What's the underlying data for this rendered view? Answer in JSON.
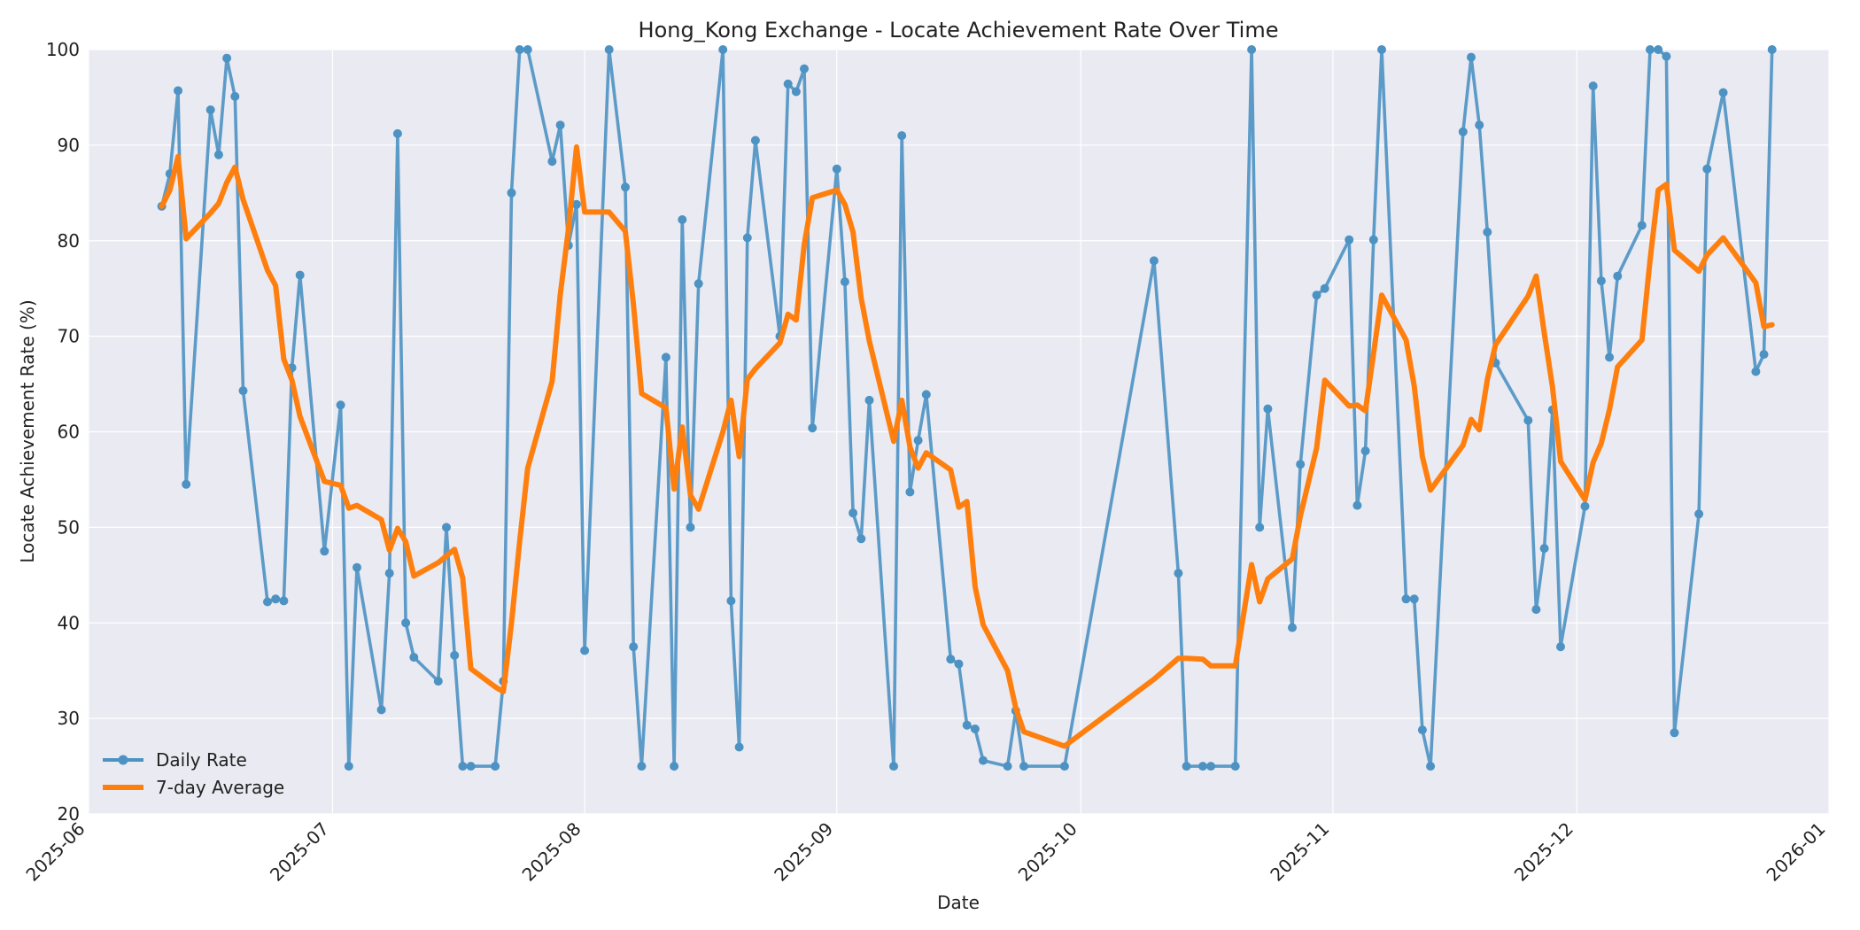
{
  "chart_data": {
    "type": "line",
    "title": "Hong_Kong Exchange - Locate Achievement Rate Over Time",
    "xlabel": "Date",
    "ylabel": "Locate Achievement Rate (%)",
    "xlim": [
      "2025-06-01",
      "2026-01-01"
    ],
    "ylim": [
      20,
      100
    ],
    "x_ticks": [
      "2025-06-01",
      "2025-07-01",
      "2025-08-01",
      "2025-09-01",
      "2025-10-01",
      "2025-11-01",
      "2025-12-01",
      "2026-01-01"
    ],
    "x_tick_labels": [
      "2025-06",
      "2025-07",
      "2025-08",
      "2025-09",
      "2025-10",
      "2025-11",
      "2025-12",
      "2026-01"
    ],
    "y_ticks": [
      20,
      30,
      40,
      50,
      60,
      70,
      80,
      90,
      100
    ],
    "grid": true,
    "legend_position": "bottom-left",
    "colors": {
      "plot_bg": "#EAEAF2",
      "daily": "#4C92C3",
      "average": "#FF7F0E"
    },
    "series": [
      {
        "name": "Daily Rate",
        "marker": "circle",
        "points": [
          [
            "2025-06-10",
            83.6
          ],
          [
            "2025-06-11",
            87.0
          ],
          [
            "2025-06-12",
            95.7
          ],
          [
            "2025-06-13",
            54.5
          ],
          [
            "2025-06-16",
            93.7
          ],
          [
            "2025-06-17",
            89.0
          ],
          [
            "2025-06-18",
            99.1
          ],
          [
            "2025-06-19",
            95.1
          ],
          [
            "2025-06-20",
            64.3
          ],
          [
            "2025-06-23",
            42.2
          ],
          [
            "2025-06-24",
            42.5
          ],
          [
            "2025-06-25",
            42.3
          ],
          [
            "2025-06-26",
            66.7
          ],
          [
            "2025-06-27",
            76.4
          ],
          [
            "2025-06-30",
            47.5
          ],
          [
            "2025-07-02",
            62.8
          ],
          [
            "2025-07-03",
            25.0
          ],
          [
            "2025-07-04",
            45.8
          ],
          [
            "2025-07-07",
            30.9
          ],
          [
            "2025-07-08",
            45.2
          ],
          [
            "2025-07-09",
            91.2
          ],
          [
            "2025-07-10",
            40.0
          ],
          [
            "2025-07-11",
            36.4
          ],
          [
            "2025-07-14",
            33.9
          ],
          [
            "2025-07-15",
            50.0
          ],
          [
            "2025-07-16",
            36.6
          ],
          [
            "2025-07-17",
            25.0
          ],
          [
            "2025-07-18",
            25.0
          ],
          [
            "2025-07-21",
            25.0
          ],
          [
            "2025-07-22",
            33.9
          ],
          [
            "2025-07-23",
            85.0
          ],
          [
            "2025-07-24",
            100.0
          ],
          [
            "2025-07-25",
            100.0
          ],
          [
            "2025-07-28",
            88.3
          ],
          [
            "2025-07-29",
            92.1
          ],
          [
            "2025-07-30",
            79.5
          ],
          [
            "2025-07-31",
            83.8
          ],
          [
            "2025-08-01",
            37.1
          ],
          [
            "2025-08-04",
            100.0
          ],
          [
            "2025-08-06",
            85.6
          ],
          [
            "2025-08-07",
            37.5
          ],
          [
            "2025-08-08",
            25.0
          ],
          [
            "2025-08-11",
            67.8
          ],
          [
            "2025-08-12",
            25.0
          ],
          [
            "2025-08-13",
            82.2
          ],
          [
            "2025-08-14",
            50.0
          ],
          [
            "2025-08-15",
            75.5
          ],
          [
            "2025-08-18",
            100.0
          ],
          [
            "2025-08-19",
            42.3
          ],
          [
            "2025-08-20",
            27.0
          ],
          [
            "2025-08-21",
            80.3
          ],
          [
            "2025-08-22",
            90.5
          ],
          [
            "2025-08-25",
            70.0
          ],
          [
            "2025-08-26",
            96.4
          ],
          [
            "2025-08-27",
            95.6
          ],
          [
            "2025-08-28",
            98.0
          ],
          [
            "2025-08-29",
            60.4
          ],
          [
            "2025-09-01",
            87.5
          ],
          [
            "2025-09-02",
            75.7
          ],
          [
            "2025-09-03",
            51.5
          ],
          [
            "2025-09-04",
            48.8
          ],
          [
            "2025-09-05",
            63.3
          ],
          [
            "2025-09-08",
            25.0
          ],
          [
            "2025-09-09",
            91.0
          ],
          [
            "2025-09-10",
            53.7
          ],
          [
            "2025-09-11",
            59.1
          ],
          [
            "2025-09-12",
            63.9
          ],
          [
            "2025-09-15",
            36.2
          ],
          [
            "2025-09-16",
            35.7
          ],
          [
            "2025-09-17",
            29.3
          ],
          [
            "2025-09-18",
            28.9
          ],
          [
            "2025-09-19",
            25.6
          ],
          [
            "2025-09-22",
            25.0
          ],
          [
            "2025-09-23",
            30.8
          ],
          [
            "2025-09-24",
            25.0
          ],
          [
            "2025-09-29",
            25.0
          ],
          [
            "2025-10-10",
            77.9
          ],
          [
            "2025-10-13",
            45.2
          ],
          [
            "2025-10-14",
            25.0
          ],
          [
            "2025-10-16",
            25.0
          ],
          [
            "2025-10-17",
            25.0
          ],
          [
            "2025-10-20",
            25.0
          ],
          [
            "2025-10-22",
            100.0
          ],
          [
            "2025-10-23",
            50.0
          ],
          [
            "2025-10-24",
            62.4
          ],
          [
            "2025-10-27",
            39.5
          ],
          [
            "2025-10-28",
            56.6
          ],
          [
            "2025-10-30",
            74.3
          ],
          [
            "2025-10-31",
            75.0
          ],
          [
            "2025-11-03",
            80.1
          ],
          [
            "2025-11-04",
            52.3
          ],
          [
            "2025-11-05",
            58.0
          ],
          [
            "2025-11-06",
            80.1
          ],
          [
            "2025-11-07",
            100.0
          ],
          [
            "2025-11-10",
            42.5
          ],
          [
            "2025-11-11",
            42.5
          ],
          [
            "2025-11-12",
            28.8
          ],
          [
            "2025-11-13",
            25.0
          ],
          [
            "2025-11-17",
            91.4
          ],
          [
            "2025-11-18",
            99.2
          ],
          [
            "2025-11-19",
            92.1
          ],
          [
            "2025-11-20",
            80.9
          ],
          [
            "2025-11-21",
            67.2
          ],
          [
            "2025-11-25",
            61.2
          ],
          [
            "2025-11-26",
            41.4
          ],
          [
            "2025-11-27",
            47.8
          ],
          [
            "2025-11-28",
            62.3
          ],
          [
            "2025-11-29",
            37.5
          ],
          [
            "2025-12-02",
            52.2
          ],
          [
            "2025-12-03",
            96.2
          ],
          [
            "2025-12-04",
            75.8
          ],
          [
            "2025-12-05",
            67.8
          ],
          [
            "2025-12-06",
            76.3
          ],
          [
            "2025-12-09",
            81.6
          ],
          [
            "2025-12-10",
            100.0
          ],
          [
            "2025-12-11",
            100.0
          ],
          [
            "2025-12-12",
            99.3
          ],
          [
            "2025-12-13",
            28.5
          ],
          [
            "2025-12-16",
            51.4
          ],
          [
            "2025-12-17",
            87.5
          ],
          [
            "2025-12-19",
            95.5
          ],
          [
            "2025-12-23",
            66.3
          ],
          [
            "2025-12-24",
            68.1
          ],
          [
            "2025-12-25",
            100.0
          ]
        ]
      },
      {
        "name": "7-day Average",
        "marker": "none",
        "points": [
          [
            "2025-06-10",
            83.6
          ],
          [
            "2025-06-11",
            85.3
          ],
          [
            "2025-06-12",
            88.8
          ],
          [
            "2025-06-13",
            80.2
          ],
          [
            "2025-06-16",
            82.9
          ],
          [
            "2025-06-17",
            83.9
          ],
          [
            "2025-06-18",
            86.1
          ],
          [
            "2025-06-19",
            87.7
          ],
          [
            "2025-06-20",
            84.3
          ],
          [
            "2025-06-23",
            76.9
          ],
          [
            "2025-06-24",
            75.3
          ],
          [
            "2025-06-25",
            67.6
          ],
          [
            "2025-06-26",
            65.4
          ],
          [
            "2025-06-27",
            61.6
          ],
          [
            "2025-06-30",
            54.8
          ],
          [
            "2025-07-02",
            54.4
          ],
          [
            "2025-07-03",
            52.0
          ],
          [
            "2025-07-04",
            52.3
          ],
          [
            "2025-07-07",
            50.8
          ],
          [
            "2025-07-08",
            47.6
          ],
          [
            "2025-07-09",
            49.9
          ],
          [
            "2025-07-10",
            48.5
          ],
          [
            "2025-07-11",
            44.9
          ],
          [
            "2025-07-14",
            46.3
          ],
          [
            "2025-07-15",
            47.0
          ],
          [
            "2025-07-16",
            47.7
          ],
          [
            "2025-07-17",
            44.7
          ],
          [
            "2025-07-18",
            35.2
          ],
          [
            "2025-07-21",
            33.3
          ],
          [
            "2025-07-22",
            32.8
          ],
          [
            "2025-07-23",
            40.0
          ],
          [
            "2025-07-24",
            48.5
          ],
          [
            "2025-07-25",
            56.2
          ],
          [
            "2025-07-28",
            65.3
          ],
          [
            "2025-07-29",
            74.4
          ],
          [
            "2025-07-30",
            81.2
          ],
          [
            "2025-07-31",
            89.8
          ],
          [
            "2025-08-01",
            83.0
          ],
          [
            "2025-08-04",
            83.0
          ],
          [
            "2025-08-06",
            81.0
          ],
          [
            "2025-08-07",
            73.3
          ],
          [
            "2025-08-08",
            64.0
          ],
          [
            "2025-08-11",
            62.5
          ],
          [
            "2025-08-12",
            54.0
          ],
          [
            "2025-08-13",
            60.5
          ],
          [
            "2025-08-14",
            53.4
          ],
          [
            "2025-08-15",
            51.9
          ],
          [
            "2025-08-18",
            60.0
          ],
          [
            "2025-08-19",
            63.3
          ],
          [
            "2025-08-20",
            57.4
          ],
          [
            "2025-08-21",
            65.5
          ],
          [
            "2025-08-22",
            66.6
          ],
          [
            "2025-08-25",
            69.3
          ],
          [
            "2025-08-26",
            72.3
          ],
          [
            "2025-08-27",
            71.7
          ],
          [
            "2025-08-28",
            79.6
          ],
          [
            "2025-08-29",
            84.5
          ],
          [
            "2025-09-01",
            85.3
          ],
          [
            "2025-09-02",
            83.8
          ],
          [
            "2025-09-03",
            80.9
          ],
          [
            "2025-09-04",
            74.0
          ],
          [
            "2025-09-05",
            69.5
          ],
          [
            "2025-09-08",
            59.0
          ],
          [
            "2025-09-09",
            63.3
          ],
          [
            "2025-09-10",
            58.4
          ],
          [
            "2025-09-11",
            56.2
          ],
          [
            "2025-09-12",
            57.8
          ],
          [
            "2025-09-15",
            56.0
          ],
          [
            "2025-09-16",
            52.1
          ],
          [
            "2025-09-17",
            52.7
          ],
          [
            "2025-09-18",
            43.8
          ],
          [
            "2025-09-19",
            39.8
          ],
          [
            "2025-09-22",
            35.0
          ],
          [
            "2025-09-23",
            31.1
          ],
          [
            "2025-09-24",
            28.6
          ],
          [
            "2025-09-29",
            27.1
          ],
          [
            "2025-10-10",
            34.1
          ],
          [
            "2025-10-13",
            36.3
          ],
          [
            "2025-10-14",
            36.3
          ],
          [
            "2025-10-16",
            36.2
          ],
          [
            "2025-10-17",
            35.5
          ],
          [
            "2025-10-20",
            35.5
          ],
          [
            "2025-10-22",
            46.1
          ],
          [
            "2025-10-23",
            42.2
          ],
          [
            "2025-10-24",
            44.6
          ],
          [
            "2025-10-27",
            46.7
          ],
          [
            "2025-10-28",
            51.2
          ],
          [
            "2025-10-30",
            58.3
          ],
          [
            "2025-10-31",
            65.4
          ],
          [
            "2025-11-03",
            62.7
          ],
          [
            "2025-11-04",
            62.8
          ],
          [
            "2025-11-05",
            62.2
          ],
          [
            "2025-11-06",
            68.2
          ],
          [
            "2025-11-07",
            74.3
          ],
          [
            "2025-11-10",
            69.6
          ],
          [
            "2025-11-11",
            64.8
          ],
          [
            "2025-11-12",
            57.4
          ],
          [
            "2025-11-13",
            53.9
          ],
          [
            "2025-11-17",
            58.6
          ],
          [
            "2025-11-18",
            61.3
          ],
          [
            "2025-11-19",
            60.2
          ],
          [
            "2025-11-20",
            65.5
          ],
          [
            "2025-11-21",
            69.1
          ],
          [
            "2025-11-25",
            74.2
          ],
          [
            "2025-11-26",
            76.3
          ],
          [
            "2025-11-27",
            70.3
          ],
          [
            "2025-11-28",
            64.7
          ],
          [
            "2025-11-29",
            56.9
          ],
          [
            "2025-12-02",
            52.9
          ],
          [
            "2025-12-03",
            56.8
          ],
          [
            "2025-12-04",
            58.8
          ],
          [
            "2025-12-05",
            62.3
          ],
          [
            "2025-12-06",
            66.8
          ],
          [
            "2025-12-09",
            69.6
          ],
          [
            "2025-12-10",
            78.0
          ],
          [
            "2025-12-11",
            85.3
          ],
          [
            "2025-12-12",
            85.9
          ],
          [
            "2025-12-13",
            79.0
          ],
          [
            "2025-12-16",
            76.8
          ],
          [
            "2025-12-17",
            78.5
          ],
          [
            "2025-12-19",
            80.3
          ],
          [
            "2025-12-23",
            75.6
          ],
          [
            "2025-12-24",
            71.0
          ],
          [
            "2025-12-25",
            71.2
          ]
        ]
      }
    ]
  }
}
